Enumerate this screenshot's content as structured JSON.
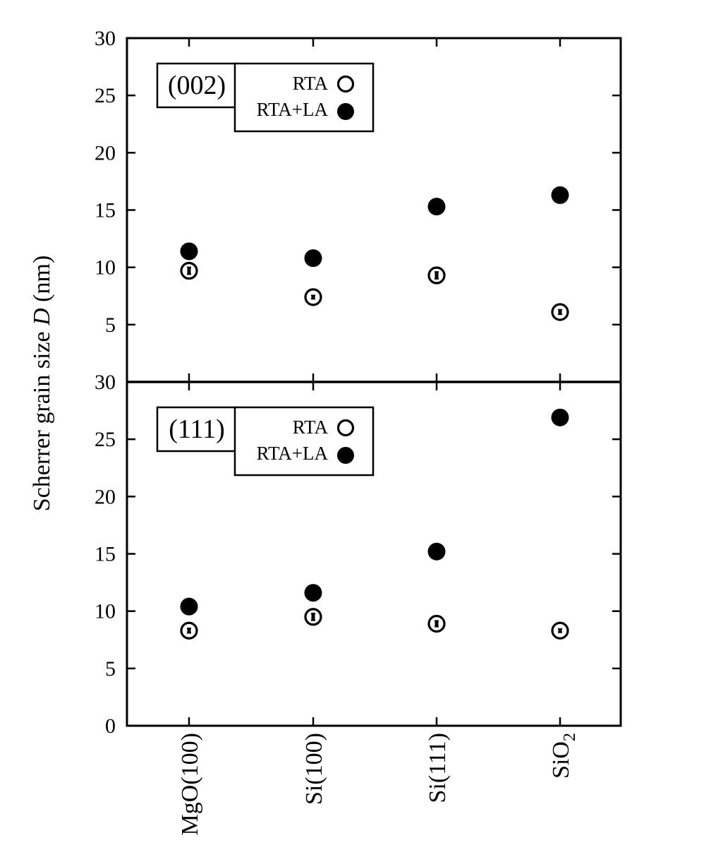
{
  "chart_data": {
    "type": "scatter",
    "ylabel_prefix": "Scherrer grain size ",
    "ylabel_var": "D",
    "ylabel_suffix": " (nm)",
    "categories": [
      {
        "base": "MgO(100)",
        "sub": ""
      },
      {
        "base": "Si(100)",
        "sub": ""
      },
      {
        "base": "Si(111)",
        "sub": ""
      },
      {
        "base": "SiO",
        "sub": "2"
      }
    ],
    "legend_labels": [
      "RTA",
      "RTA+LA"
    ],
    "panels": [
      {
        "tag": "(002)",
        "ylim": [
          0,
          30
        ],
        "ticks": [
          "5",
          "10",
          "15",
          "20",
          "25",
          "30"
        ],
        "series": [
          {
            "name": "RTA",
            "marker": "open-circle",
            "values": [
              9.7,
              7.4,
              9.3,
              6.1
            ],
            "errors": [
              0.3,
              0.15,
              0.3,
              0.2
            ]
          },
          {
            "name": "RTA+LA",
            "marker": "filled-circle",
            "values": [
              11.4,
              10.8,
              15.3,
              16.3
            ]
          }
        ]
      },
      {
        "tag": "(111)",
        "ylim": [
          0,
          30
        ],
        "ticks": [
          "0",
          "5",
          "10",
          "15",
          "20",
          "25",
          "30"
        ],
        "series": [
          {
            "name": "RTA",
            "marker": "open-circle",
            "values": [
              8.3,
              9.5,
              8.9,
              8.3
            ],
            "errors": [
              0.2,
              0.3,
              0.25,
              0.15
            ]
          },
          {
            "name": "RTA+LA",
            "marker": "filled-circle",
            "values": [
              10.4,
              11.6,
              15.2,
              26.9
            ]
          }
        ]
      }
    ],
    "grid": false,
    "legend_placement": "top-left"
  }
}
